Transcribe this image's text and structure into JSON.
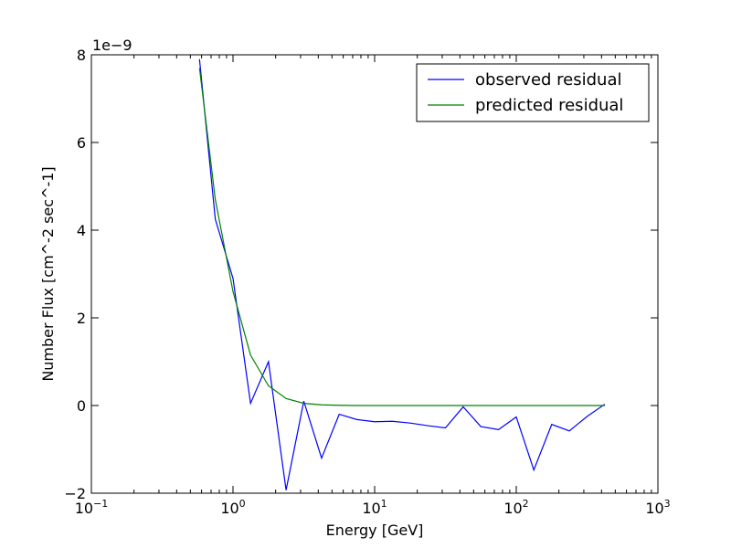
{
  "chart_data": {
    "type": "line",
    "xlabel": "Energy [GeV]",
    "ylabel": "Number Flux [cm^-2 sec^-1]",
    "y_offset_label": "1e−9",
    "x_scale": "log",
    "xlim": [
      0.1,
      1000
    ],
    "ylim": [
      -2,
      8
    ],
    "grid": false,
    "legend_position": "top-right",
    "x_ticks": [
      {
        "value": 0.1,
        "base": "10",
        "exp": "−1"
      },
      {
        "value": 1,
        "base": "10",
        "exp": "0"
      },
      {
        "value": 10,
        "base": "10",
        "exp": "1"
      },
      {
        "value": 100,
        "base": "10",
        "exp": "2"
      },
      {
        "value": 1000,
        "base": "10",
        "exp": "3"
      }
    ],
    "y_ticks": [
      {
        "value": -2,
        "label": "−2"
      },
      {
        "value": 0,
        "label": "0"
      },
      {
        "value": 2,
        "label": "2"
      },
      {
        "value": 4,
        "label": "4"
      },
      {
        "value": 6,
        "label": "6"
      },
      {
        "value": 8,
        "label": "8"
      }
    ],
    "series": [
      {
        "name": "observed residual",
        "color": "#0000ff",
        "points": [
          [
            0.58,
            7.9
          ],
          [
            0.75,
            4.25
          ],
          [
            1.0,
            2.9
          ],
          [
            1.33,
            0.05
          ],
          [
            1.78,
            1.0
          ],
          [
            2.37,
            -1.93
          ],
          [
            3.16,
            0.1
          ],
          [
            4.22,
            -1.2
          ],
          [
            5.62,
            -0.2
          ],
          [
            7.5,
            -0.32
          ],
          [
            10.0,
            -0.37
          ],
          [
            13.3,
            -0.36
          ],
          [
            17.8,
            -0.4
          ],
          [
            23.7,
            -0.46
          ],
          [
            31.6,
            -0.51
          ],
          [
            42.2,
            -0.03
          ],
          [
            56.2,
            -0.48
          ],
          [
            75.0,
            -0.55
          ],
          [
            100.0,
            -0.26
          ],
          [
            133.0,
            -1.47
          ],
          [
            178.0,
            -0.43
          ],
          [
            237.0,
            -0.58
          ],
          [
            316.0,
            -0.25
          ],
          [
            422.0,
            0.03
          ]
        ]
      },
      {
        "name": "predicted residual",
        "color": "#008000",
        "points": [
          [
            0.58,
            7.7
          ],
          [
            0.75,
            4.7
          ],
          [
            1.0,
            2.6
          ],
          [
            1.33,
            1.15
          ],
          [
            1.78,
            0.45
          ],
          [
            2.37,
            0.16
          ],
          [
            3.16,
            0.05
          ],
          [
            4.22,
            0.015
          ],
          [
            5.62,
            0.005
          ],
          [
            7.5,
            0.0
          ],
          [
            10.0,
            0.0
          ],
          [
            13.3,
            0.0
          ],
          [
            17.8,
            0.0
          ],
          [
            23.7,
            0.0
          ],
          [
            31.6,
            0.0
          ],
          [
            42.2,
            0.0
          ],
          [
            56.2,
            0.0
          ],
          [
            75.0,
            0.0
          ],
          [
            100.0,
            0.0
          ],
          [
            133.0,
            0.0
          ],
          [
            178.0,
            0.0
          ],
          [
            237.0,
            0.0
          ],
          [
            316.0,
            0.0
          ],
          [
            422.0,
            0.0
          ]
        ]
      }
    ]
  }
}
